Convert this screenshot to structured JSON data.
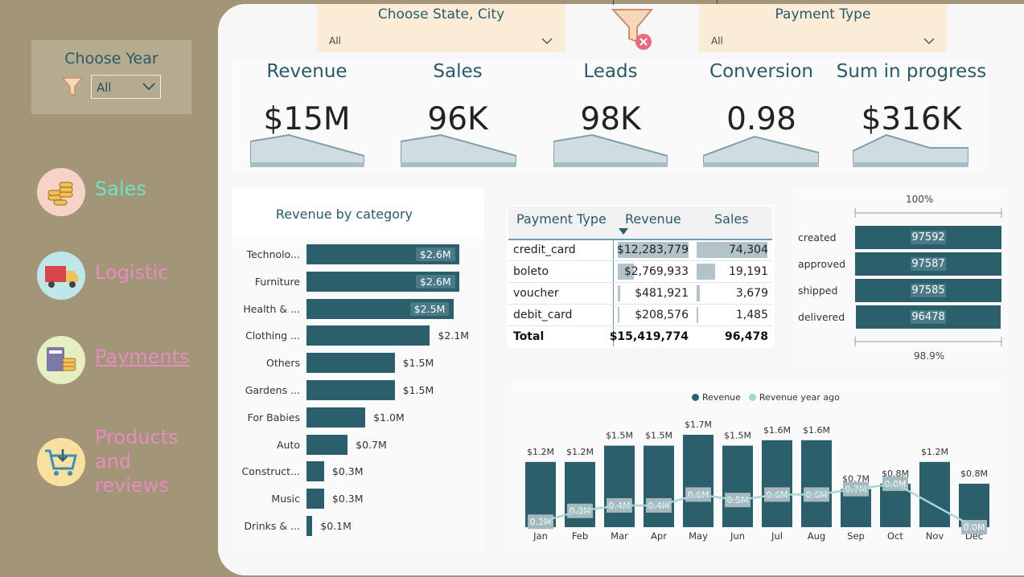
{
  "colors": {
    "teal": "#2c5f6c",
    "light_teal": "#a8d5d3",
    "sidebar": "#a39577",
    "sales": "#6fe3c4",
    "nav_pink": "#e68cc2"
  },
  "year_filter": {
    "title": "Choose Year",
    "value": "All"
  },
  "slicers": {
    "state_city": {
      "title": "Choose State, City",
      "value": "All"
    },
    "payment_type": {
      "title": "Payment Type",
      "value": "All"
    }
  },
  "nav": [
    {
      "label": "Sales",
      "icon": "coins-icon"
    },
    {
      "label": "Logistic",
      "icon": "truck-icon"
    },
    {
      "label": "Payments",
      "icon": "receipt-coins-icon"
    },
    {
      "label": "Products and reviews",
      "icon": "cart-icon"
    }
  ],
  "kpis": [
    {
      "title": "Revenue",
      "value": "$15M"
    },
    {
      "title": "Sales",
      "value": "96K"
    },
    {
      "title": "Leads",
      "value": "98K"
    },
    {
      "title": "Conversion",
      "value": "0.98"
    },
    {
      "title": "Sum in progress",
      "value": "$316K"
    }
  ],
  "category_chart": {
    "title": "Revenue by category",
    "categories": [
      "Technolo...",
      "Furniture",
      "Health & ...",
      "Clothing ...",
      "Others",
      "Gardens ...",
      "For Babies",
      "Auto",
      "Construct...",
      "Music",
      "Drinks & ..."
    ],
    "values": [
      2.6,
      2.6,
      2.5,
      2.1,
      1.5,
      1.5,
      1.0,
      0.7,
      0.3,
      0.3,
      0.1
    ],
    "labels": [
      "$2.6M",
      "$2.6M",
      "$2.5M",
      "$2.1M",
      "$1.5M",
      "$1.5M",
      "$1.0M",
      "$0.7M",
      "$0.3M",
      "$0.3M",
      "$0.1M"
    ]
  },
  "payment_table": {
    "headers": [
      "Payment Type",
      "Revenue",
      "Sales"
    ],
    "rows": [
      {
        "type": "credit_card",
        "revenue": "$12,283,779",
        "sales": "74,304",
        "rev_share": 1.0,
        "sales_share": 1.0
      },
      {
        "type": "boleto",
        "revenue": "$2,769,933",
        "sales": "19,191",
        "rev_share": 0.225,
        "sales_share": 0.258
      },
      {
        "type": "voucher",
        "revenue": "$481,921",
        "sales": "3,679",
        "rev_share": 0.039,
        "sales_share": 0.05
      },
      {
        "type": "debit_card",
        "revenue": "$208,576",
        "sales": "1,485",
        "rev_share": 0.017,
        "sales_share": 0.02
      }
    ],
    "total": {
      "type": "Total",
      "revenue": "$15,419,774",
      "sales": "96,478"
    }
  },
  "funnel": {
    "top_label": "100%",
    "bottom_label": "98.9%",
    "stages": [
      {
        "name": "created",
        "value": 97592
      },
      {
        "name": "approved",
        "value": 97587
      },
      {
        "name": "shipped",
        "value": 97585
      },
      {
        "name": "delivered",
        "value": 96478
      }
    ]
  },
  "monthly_chart": {
    "legend": [
      "Revenue",
      "Revenue year ago"
    ],
    "months": [
      "Jan",
      "Feb",
      "Mar",
      "Apr",
      "May",
      "Jun",
      "Jul",
      "Aug",
      "Sep",
      "Oct",
      "Nov",
      "Dec"
    ],
    "revenue": [
      1.2,
      1.2,
      1.5,
      1.5,
      1.7,
      1.5,
      1.6,
      1.6,
      0.7,
      0.8,
      1.2,
      0.8
    ],
    "revenue_labels": [
      "$1.2M",
      "$1.2M",
      "$1.5M",
      "$1.5M",
      "$1.7M",
      "$1.5M",
      "$1.6M",
      "$1.6M",
      "$0.7M",
      "$0.8M",
      "$1.2M",
      "$0.8M"
    ],
    "year_ago": [
      0.1,
      0.3,
      0.4,
      0.4,
      0.6,
      0.5,
      0.6,
      0.6,
      0.7,
      0.8,
      null,
      0.0
    ],
    "year_ago_labels": [
      "0.1M",
      "0.3M",
      "0.4M",
      "0.4M",
      "0.6M",
      "0.5M",
      "0.6M",
      "0.6M",
      "0.7M",
      "0.8M",
      "",
      "0.0M"
    ]
  }
}
